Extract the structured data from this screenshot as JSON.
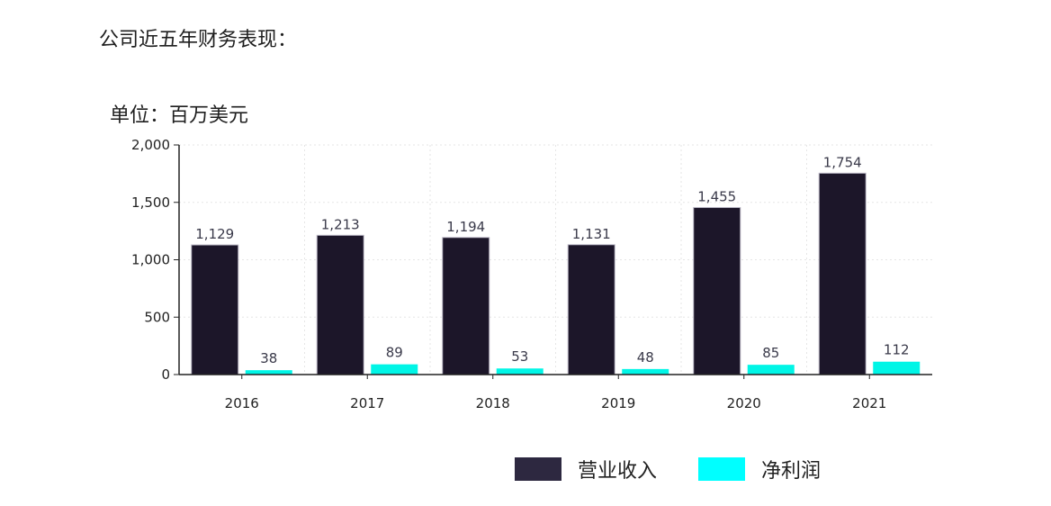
{
  "heading": "公司近五年财务表现：",
  "unit_label": "单位：百万美元",
  "colors": {
    "revenue": "#1c1629",
    "profit": "#00f5e6",
    "legend_revenue": "#2d2840",
    "legend_profit": "#00ffff",
    "axis": "#222222",
    "grid": "#e6e6e6"
  },
  "chart_data": {
    "type": "bar",
    "categories": [
      "2016",
      "2017",
      "2018",
      "2019",
      "2020",
      "2021"
    ],
    "series": [
      {
        "name": "营业收入",
        "values": [
          1129,
          1213,
          1194,
          1131,
          1455,
          1754
        ],
        "labels": [
          "1,129",
          "1,213",
          "1,194",
          "1,131",
          "1,455",
          "1,754"
        ]
      },
      {
        "name": "净利润",
        "values": [
          38,
          89,
          53,
          48,
          85,
          112
        ],
        "labels": [
          "38",
          "89",
          "53",
          "48",
          "85",
          "112"
        ]
      }
    ],
    "ylim": [
      0,
      2000
    ],
    "yticks": [
      0,
      500,
      1000,
      1500,
      2000
    ],
    "ytick_labels": [
      "0",
      "500",
      "1,000",
      "1,500",
      "2,000"
    ],
    "grid": true,
    "legend_position": "bottom-center"
  }
}
